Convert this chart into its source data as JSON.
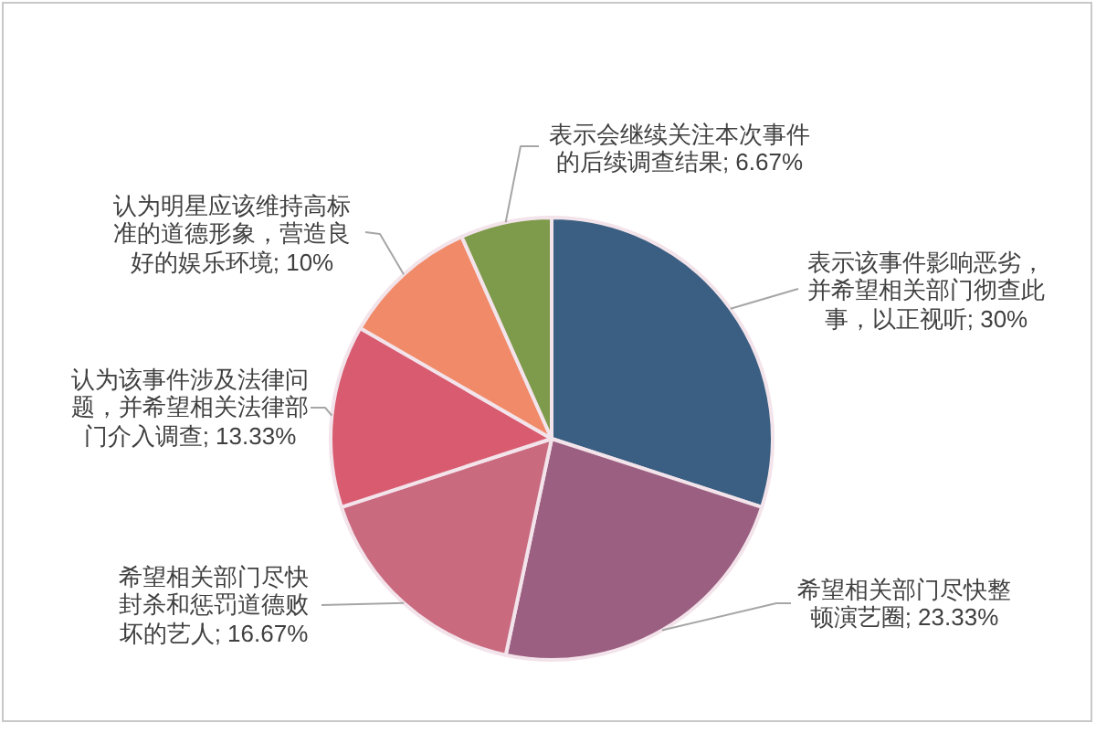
{
  "chart_data": {
    "type": "pie",
    "categories": [
      "表示该事件影响恶劣，并希望相关部门彻查此事，以正视听",
      "希望相关部门尽快整顿演艺圈",
      "希望相关部门尽快封杀和惩罚道德败坏的艺人",
      "认为该事件涉及法律问题，并希望相关法律部门介入调查",
      "认为明星应该维持高标准的道德形象，营造良好的娱乐环境",
      "表示会继续关注本次事件的后续调查结果"
    ],
    "values": [
      30,
      23.33,
      16.67,
      13.33,
      10,
      6.67
    ],
    "value_labels": [
      "30%",
      "23.33%",
      "16.67%",
      "13.33%",
      "10%",
      "6.67%"
    ],
    "colors": [
      "#3a5f82",
      "#9b5f81",
      "#c96a7f",
      "#d95b70",
      "#f08a69",
      "#7e9a4b"
    ]
  }
}
